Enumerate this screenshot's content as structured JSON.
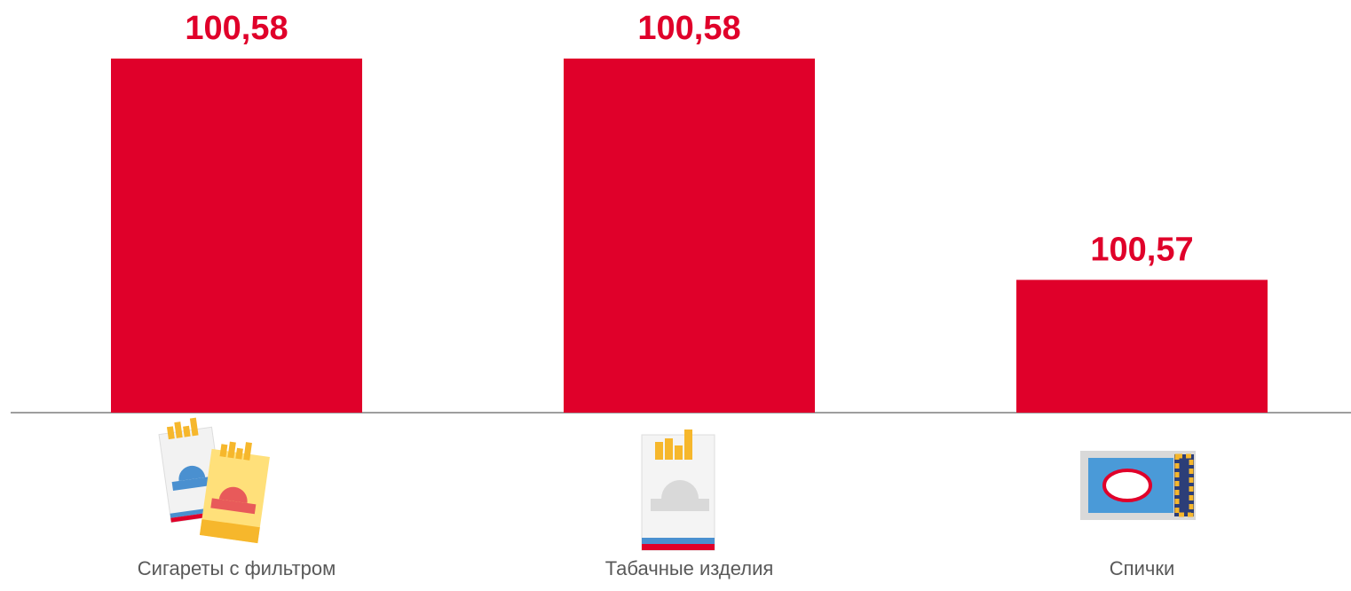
{
  "chart_data": {
    "type": "bar",
    "categories": [
      "Сигареты с фильтром",
      "Табачные изделия",
      "Спички"
    ],
    "values": [
      100.58,
      100.58,
      100.57
    ],
    "value_labels": [
      "100,58",
      "100,58",
      "100,57"
    ],
    "color": "#e0002a",
    "ylim": [
      100.564,
      100.58
    ]
  }
}
